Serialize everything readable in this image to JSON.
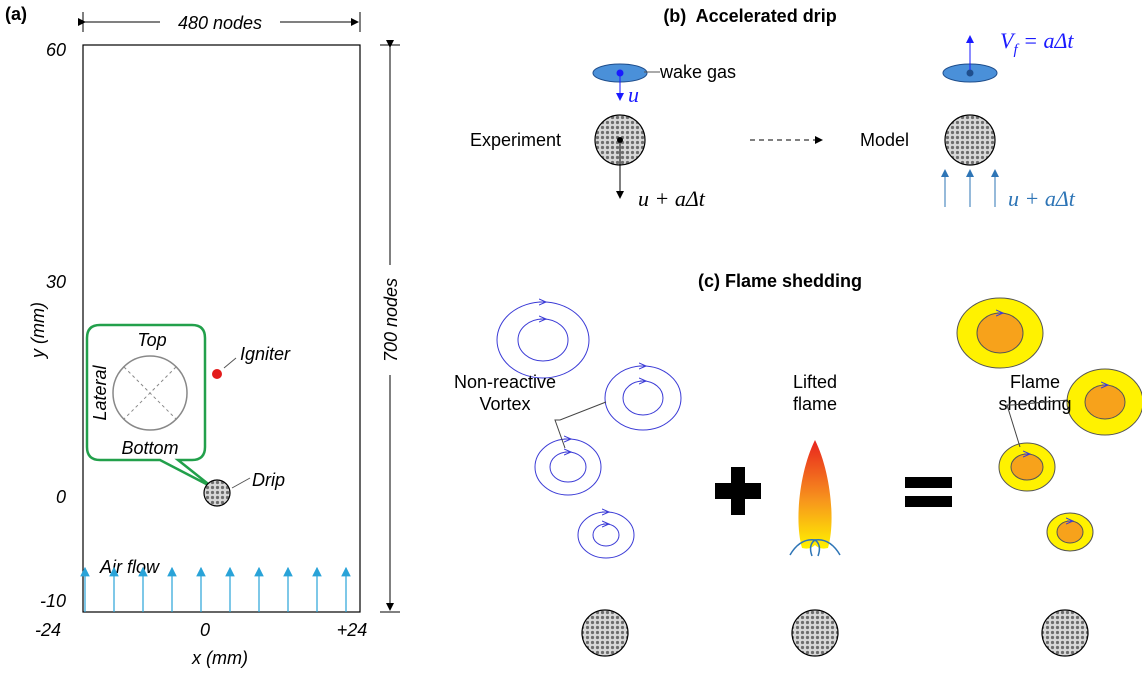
{
  "panel_a": {
    "label": "(a)",
    "width_label": "480 nodes",
    "height_label": "700 nodes",
    "y_ticks": [
      "60",
      "30",
      "0",
      "-10"
    ],
    "x_ticks": [
      "-24",
      "0",
      "+24"
    ],
    "x_axis": "x (mm)",
    "y_axis": "y (mm)",
    "callout": {
      "top": "Top",
      "lateral": "Lateral",
      "bottom": "Bottom"
    },
    "igniter": "Igniter",
    "drip": "Drip",
    "air_flow": "Air flow"
  },
  "panel_b": {
    "title": "(b)  Accelerated drip",
    "wake_gas": "wake gas",
    "u": "u",
    "experiment": "Experiment",
    "experiment_velocity": "u + aΔt",
    "model": "Model",
    "flame_velocity": {
      "symbol": "V",
      "subscript": "f",
      "rest": " = aΔt"
    },
    "model_velocity": "u + aΔt"
  },
  "panel_c": {
    "title": "(c) Flame shedding",
    "vortex": [
      "Non-reactive",
      "Vortex"
    ],
    "lifted_flame": [
      "Lifted",
      "flame"
    ],
    "flame_shedding": [
      "Flame",
      "shedding"
    ]
  }
}
